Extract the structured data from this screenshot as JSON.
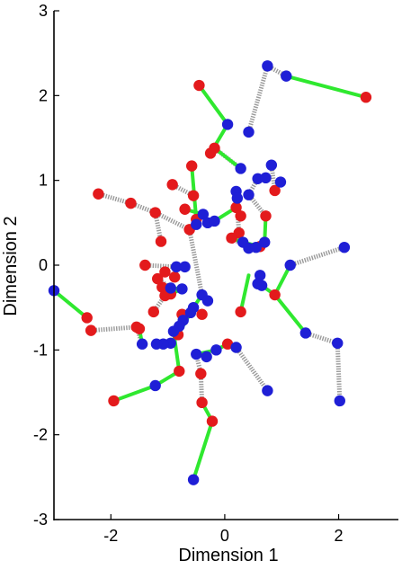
{
  "chart_data": {
    "type": "scatter",
    "xlabel": "Dimension 1",
    "ylabel": "Dimension 2",
    "xlim": [
      -3.0,
      3.05
    ],
    "ylim": [
      -3,
      3
    ],
    "xticks": [
      -2,
      0,
      2
    ],
    "yticks": [
      -3,
      -2,
      -1,
      0,
      1,
      2,
      3
    ],
    "xtick_labels": [
      "-2",
      "0",
      "2"
    ],
    "ytick_labels": [
      "-3",
      "-2",
      "-1",
      "0",
      "1",
      "2",
      "3"
    ],
    "grid": false,
    "legend": null,
    "colors": {
      "series_a": "#e31a1c",
      "series_b": "#1f1fd6",
      "green_link": "#2fe82f",
      "dashed_link": "#9a9a9a",
      "axis": "#000000"
    },
    "series": [
      {
        "color": "red",
        "points": [
          [
            -0.45,
            2.12
          ],
          [
            2.48,
            1.98
          ],
          [
            -0.18,
            1.38
          ],
          [
            -0.25,
            1.32
          ],
          [
            -0.58,
            1.17
          ],
          [
            -2.22,
            0.84
          ],
          [
            -1.65,
            0.73
          ],
          [
            -1.22,
            0.62
          ],
          [
            -1.12,
            0.28
          ],
          [
            -0.92,
            0.95
          ],
          [
            -0.7,
            0.66
          ],
          [
            -0.55,
            0.82
          ],
          [
            -0.62,
            0.42
          ],
          [
            -0.5,
            0.54
          ],
          [
            0.2,
            0.68
          ],
          [
            0.28,
            0.58
          ],
          [
            0.25,
            0.38
          ],
          [
            0.72,
            0.58
          ],
          [
            0.12,
            0.32
          ],
          [
            0.62,
            0.22
          ],
          [
            0.88,
            0.88
          ],
          [
            -1.4,
            0.0
          ],
          [
            -1.05,
            -0.08
          ],
          [
            -0.88,
            -0.14
          ],
          [
            -1.18,
            -0.16
          ],
          [
            -1.1,
            -0.26
          ],
          [
            -1.05,
            -0.36
          ],
          [
            -0.95,
            -0.34
          ],
          [
            -1.25,
            -0.55
          ],
          [
            -0.75,
            -0.58
          ],
          [
            -0.4,
            -0.58
          ],
          [
            0.28,
            -0.55
          ],
          [
            0.88,
            -0.35
          ],
          [
            -1.55,
            -0.73
          ],
          [
            -1.5,
            -0.75
          ],
          [
            -2.42,
            -0.62
          ],
          [
            -2.35,
            -0.77
          ],
          [
            -0.8,
            -1.25
          ],
          [
            -0.42,
            -1.28
          ],
          [
            0.05,
            -0.93
          ],
          [
            -1.95,
            -1.6
          ],
          [
            -0.4,
            -1.62
          ],
          [
            -0.22,
            -1.84
          ],
          [
            -0.82,
            -0.82
          ]
        ]
      },
      {
        "color": "blue",
        "points": [
          [
            0.75,
            2.35
          ],
          [
            1.08,
            2.23
          ],
          [
            0.05,
            1.66
          ],
          [
            0.42,
            1.57
          ],
          [
            0.28,
            1.14
          ],
          [
            0.58,
            1.02
          ],
          [
            0.72,
            1.03
          ],
          [
            0.82,
            1.18
          ],
          [
            0.98,
            0.98
          ],
          [
            0.42,
            0.83
          ],
          [
            0.2,
            0.87
          ],
          [
            0.22,
            0.79
          ],
          [
            -0.38,
            0.6
          ],
          [
            -0.3,
            0.5
          ],
          [
            -0.5,
            0.48
          ],
          [
            -0.18,
            0.52
          ],
          [
            0.32,
            0.27
          ],
          [
            0.42,
            0.2
          ],
          [
            0.55,
            0.21
          ],
          [
            0.7,
            0.27
          ],
          [
            2.1,
            0.21
          ],
          [
            1.15,
            0.0
          ],
          [
            0.62,
            -0.12
          ],
          [
            0.58,
            -0.22
          ],
          [
            0.65,
            -0.24
          ],
          [
            -0.85,
            -0.02
          ],
          [
            -0.7,
            -0.02
          ],
          [
            -0.95,
            -0.27
          ],
          [
            -0.75,
            -0.28
          ],
          [
            -0.4,
            -0.35
          ],
          [
            -0.3,
            -0.42
          ],
          [
            -3.0,
            -0.3
          ],
          [
            -0.55,
            -0.5
          ],
          [
            -0.6,
            -0.56
          ],
          [
            -0.73,
            -0.65
          ],
          [
            -0.8,
            -0.72
          ],
          [
            -0.9,
            -0.78
          ],
          [
            -0.95,
            -0.92
          ],
          [
            -1.08,
            -0.93
          ],
          [
            -1.2,
            -0.93
          ],
          [
            -1.45,
            -0.93
          ],
          [
            -0.5,
            -1.05
          ],
          [
            -0.32,
            -1.08
          ],
          [
            -0.15,
            -1.0
          ],
          [
            0.2,
            -0.97
          ],
          [
            -1.22,
            -1.42
          ],
          [
            0.75,
            -1.48
          ],
          [
            1.42,
            -0.8
          ],
          [
            1.98,
            -0.92
          ],
          [
            2.02,
            -1.6
          ],
          [
            -0.55,
            -2.53
          ]
        ]
      }
    ],
    "links": {
      "green": [
        [
          [
            -0.45,
            2.12
          ],
          [
            0.05,
            1.66
          ]
        ],
        [
          [
            1.08,
            2.23
          ],
          [
            2.48,
            1.98
          ]
        ],
        [
          [
            0.05,
            1.66
          ],
          [
            -0.25,
            1.32
          ]
        ],
        [
          [
            0.28,
            1.14
          ],
          [
            -0.18,
            1.38
          ]
        ],
        [
          [
            -0.58,
            1.17
          ],
          [
            -0.5,
            0.54
          ]
        ],
        [
          [
            0.88,
            0.88
          ],
          [
            0.98,
            0.98
          ]
        ],
        [
          [
            -0.7,
            0.66
          ],
          [
            -0.38,
            0.6
          ]
        ],
        [
          [
            -0.38,
            0.6
          ],
          [
            -0.3,
            0.5
          ]
        ],
        [
          [
            -0.3,
            0.5
          ],
          [
            -0.18,
            0.52
          ]
        ],
        [
          [
            -0.18,
            0.52
          ],
          [
            0.2,
            0.68
          ]
        ],
        [
          [
            0.12,
            0.32
          ],
          [
            0.32,
            0.27
          ]
        ],
        [
          [
            0.32,
            0.27
          ],
          [
            0.62,
            0.22
          ]
        ],
        [
          [
            0.62,
            0.22
          ],
          [
            0.7,
            0.27
          ]
        ],
        [
          [
            0.7,
            0.27
          ],
          [
            0.72,
            0.58
          ]
        ],
        [
          [
            -0.95,
            -0.27
          ],
          [
            -0.75,
            -0.28
          ]
        ],
        [
          [
            -0.75,
            -0.28
          ],
          [
            -0.95,
            -0.34
          ]
        ],
        [
          [
            -0.4,
            -0.35
          ],
          [
            -0.55,
            -0.5
          ]
        ],
        [
          [
            -0.55,
            -0.5
          ],
          [
            -0.6,
            -0.56
          ]
        ],
        [
          [
            -0.6,
            -0.56
          ],
          [
            -0.82,
            -0.82
          ]
        ],
        [
          [
            -0.82,
            -0.82
          ],
          [
            -0.8,
            -0.72
          ]
        ],
        [
          [
            0.42,
            -0.12
          ],
          [
            0.28,
            -0.55
          ]
        ],
        [
          [
            0.65,
            -0.24
          ],
          [
            0.88,
            -0.35
          ]
        ],
        [
          [
            0.88,
            -0.35
          ],
          [
            1.15,
            0.0
          ]
        ],
        [
          [
            0.88,
            -0.35
          ],
          [
            1.42,
            -0.8
          ]
        ],
        [
          [
            -3.0,
            -0.3
          ],
          [
            -2.42,
            -0.62
          ]
        ],
        [
          [
            -1.45,
            -0.93
          ],
          [
            -1.5,
            -0.75
          ]
        ],
        [
          [
            -0.9,
            -0.78
          ],
          [
            -0.8,
            -1.25
          ]
        ],
        [
          [
            -0.5,
            -1.05
          ],
          [
            -0.15,
            -1.0
          ]
        ],
        [
          [
            -0.15,
            -1.0
          ],
          [
            0.05,
            -0.93
          ]
        ],
        [
          [
            0.05,
            -0.93
          ],
          [
            0.2,
            -0.97
          ]
        ],
        [
          [
            -1.95,
            -1.6
          ],
          [
            -1.22,
            -1.42
          ]
        ],
        [
          [
            -1.22,
            -1.42
          ],
          [
            -0.8,
            -1.25
          ]
        ],
        [
          [
            -0.4,
            -1.62
          ],
          [
            -0.22,
            -1.84
          ]
        ],
        [
          [
            -0.22,
            -1.84
          ],
          [
            -0.55,
            -2.53
          ]
        ]
      ],
      "dashed": [
        [
          [
            0.42,
            1.57
          ],
          [
            0.75,
            2.35
          ]
        ],
        [
          [
            0.75,
            2.35
          ],
          [
            1.08,
            2.23
          ]
        ],
        [
          [
            -0.18,
            1.38
          ],
          [
            0.28,
            1.14
          ]
        ],
        [
          [
            0.58,
            1.02
          ],
          [
            0.42,
            0.83
          ]
        ],
        [
          [
            0.82,
            1.18
          ],
          [
            0.88,
            0.88
          ]
        ],
        [
          [
            -2.22,
            0.84
          ],
          [
            -1.65,
            0.73
          ]
        ],
        [
          [
            -1.65,
            0.73
          ],
          [
            -1.22,
            0.62
          ]
        ],
        [
          [
            -1.22,
            0.62
          ],
          [
            -1.12,
            0.28
          ]
        ],
        [
          [
            -1.22,
            0.62
          ],
          [
            -0.62,
            0.42
          ]
        ],
        [
          [
            -0.92,
            0.95
          ],
          [
            -0.55,
            0.82
          ]
        ],
        [
          [
            0.2,
            0.87
          ],
          [
            0.25,
            0.38
          ]
        ],
        [
          [
            0.42,
            0.83
          ],
          [
            0.72,
            0.58
          ]
        ],
        [
          [
            0.42,
            0.2
          ],
          [
            0.12,
            0.32
          ]
        ],
        [
          [
            1.15,
            0.0
          ],
          [
            2.1,
            0.21
          ]
        ],
        [
          [
            -1.4,
            0.0
          ],
          [
            -0.85,
            -0.02
          ]
        ],
        [
          [
            -0.85,
            -0.02
          ],
          [
            -0.7,
            -0.02
          ]
        ],
        [
          [
            -1.18,
            -0.16
          ],
          [
            -0.95,
            -0.27
          ]
        ],
        [
          [
            -0.62,
            0.42
          ],
          [
            -0.4,
            -0.35
          ]
        ],
        [
          [
            -1.25,
            -0.55
          ],
          [
            -1.05,
            -0.36
          ]
        ],
        [
          [
            -2.35,
            -0.77
          ],
          [
            -1.55,
            -0.73
          ]
        ],
        [
          [
            -1.55,
            -0.73
          ],
          [
            -1.45,
            -0.93
          ]
        ],
        [
          [
            -0.75,
            -0.58
          ],
          [
            -0.73,
            -0.65
          ]
        ],
        [
          [
            0.2,
            -0.97
          ],
          [
            0.75,
            -1.48
          ]
        ],
        [
          [
            1.42,
            -0.8
          ],
          [
            1.98,
            -0.92
          ]
        ],
        [
          [
            1.98,
            -0.92
          ],
          [
            2.02,
            -1.6
          ]
        ],
        [
          [
            -0.42,
            -1.28
          ],
          [
            -0.5,
            -1.05
          ]
        ],
        [
          [
            -0.42,
            -1.28
          ],
          [
            -0.4,
            -1.62
          ]
        ],
        [
          [
            -1.2,
            -0.93
          ],
          [
            -1.08,
            -0.93
          ]
        ],
        [
          [
            -1.08,
            -0.93
          ],
          [
            -0.95,
            -0.92
          ]
        ],
        [
          [
            0.62,
            -0.12
          ],
          [
            0.58,
            -0.22
          ]
        ]
      ]
    }
  }
}
